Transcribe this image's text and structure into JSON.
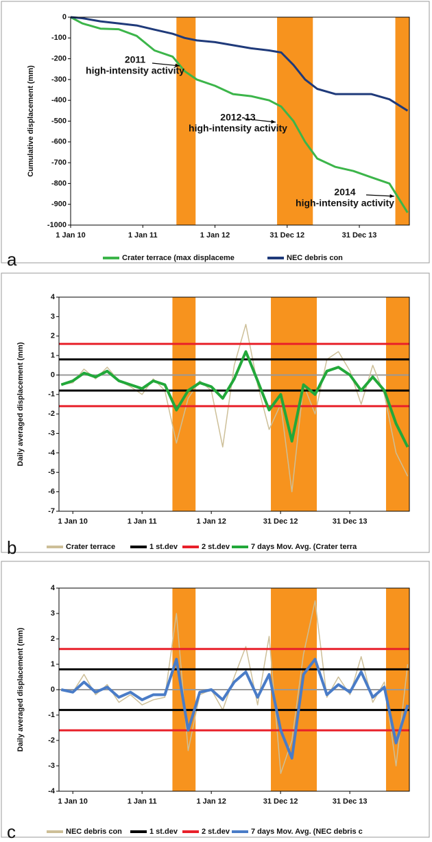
{
  "chart_data": [
    {
      "type": "line",
      "label": "a",
      "y_label": "Cumulative displacement (mm)",
      "x": [
        "2010-01-01",
        "2010-03-01",
        "2010-06-01",
        "2010-09-01",
        "2010-12-01",
        "2011-03-01",
        "2011-06-01",
        "2011-08-01",
        "2011-10-01",
        "2012-01-01",
        "2012-04-01",
        "2012-07-01",
        "2012-10-01",
        "2012-12-01",
        "2013-02-01",
        "2013-04-01",
        "2013-06-01",
        "2013-09-01",
        "2013-12-01",
        "2014-03-01",
        "2014-06-01",
        "2014-09-01"
      ],
      "series": [
        {
          "name": "Crater terrace (max displaceme",
          "color": "#3cb54a",
          "values": [
            0,
            -30,
            -55,
            -58,
            -90,
            -160,
            -190,
            -260,
            -300,
            -330,
            -370,
            -380,
            -400,
            -430,
            -500,
            -600,
            -680,
            -720,
            -740,
            -770,
            -800,
            -940
          ]
        },
        {
          "name": "NEC debris con",
          "color": "#1f3a7a",
          "values": [
            0,
            -5,
            -20,
            -30,
            -40,
            -60,
            -80,
            -100,
            -112,
            -120,
            -135,
            -150,
            -160,
            -170,
            -230,
            -300,
            -345,
            -370,
            -370,
            -370,
            -395,
            -450
          ]
        }
      ],
      "bands": [
        [
          "2011-06-20",
          "2011-09-25"
        ],
        [
          "2012-11-10",
          "2013-05-10"
        ],
        [
          "2014-07-01",
          "2014-09-10"
        ]
      ],
      "band_color": "#f7931e",
      "xlim": [
        "2010-01-01",
        "2014-09-10"
      ],
      "xticks": [
        {
          "value": "2010-01-01",
          "label": "1 Jan 10"
        },
        {
          "value": "2011-01-01",
          "label": "1 Jan 11"
        },
        {
          "value": "2012-01-01",
          "label": "1 Jan 12"
        },
        {
          "value": "2012-12-31",
          "label": "31 Dec 12"
        },
        {
          "value": "2013-12-31",
          "label": "31 Dec 13"
        }
      ],
      "ylim": [
        -1000,
        0
      ],
      "yticks": [
        0,
        -100,
        -200,
        -300,
        -400,
        -500,
        -600,
        -700,
        -800,
        -900,
        -1000
      ],
      "annotations": [
        {
          "lines": [
            "2011",
            "high-intensity activity"
          ]
        },
        {
          "lines": [
            "2012-13",
            "high-intensity activity"
          ]
        },
        {
          "lines": [
            "2014",
            "high-intensity activity"
          ]
        }
      ],
      "zero_line": false
    },
    {
      "type": "line",
      "label": "b",
      "y_label": "Daily averaged displacement (mm)",
      "x": [
        "2009-11-01",
        "2010-01-01",
        "2010-03-01",
        "2010-05-01",
        "2010-07-01",
        "2010-09-01",
        "2010-11-01",
        "2011-01-01",
        "2011-03-01",
        "2011-05-01",
        "2011-07-01",
        "2011-09-01",
        "2011-11-01",
        "2012-01-01",
        "2012-03-01",
        "2012-05-01",
        "2012-07-01",
        "2012-09-01",
        "2012-11-01",
        "2013-01-01",
        "2013-03-01",
        "2013-05-01",
        "2013-07-01",
        "2013-09-01",
        "2013-11-01",
        "2014-01-01",
        "2014-03-01",
        "2014-05-01",
        "2014-07-01",
        "2014-09-01",
        "2014-11-01"
      ],
      "series": [
        {
          "name": "Crater terrace",
          "color": "#cdbf98",
          "values": [
            -0.5,
            -0.4,
            0.3,
            -0.2,
            0.4,
            -0.3,
            -0.6,
            -1.0,
            -0.2,
            -0.8,
            -3.5,
            -1.2,
            -0.3,
            -0.8,
            -3.7,
            0.5,
            2.6,
            -0.5,
            -2.8,
            -1.5,
            -6.0,
            -0.5,
            -2.0,
            0.8,
            1.2,
            0.2,
            -1.5,
            0.5,
            -1.0,
            -4.0,
            -5.2
          ]
        },
        {
          "name": "1 st.dev",
          "color": "#000000",
          "levels": [
            0.8,
            -0.8
          ]
        },
        {
          "name": "2 st.dev",
          "color": "#e8202a",
          "levels": [
            1.6,
            -1.6
          ]
        },
        {
          "name": "7 days Mov. Avg. (Crater terra",
          "color": "#22a83a",
          "values": [
            -0.5,
            -0.3,
            0.1,
            -0.1,
            0.2,
            -0.3,
            -0.5,
            -0.7,
            -0.3,
            -0.5,
            -1.8,
            -0.8,
            -0.4,
            -0.6,
            -1.2,
            -0.2,
            1.2,
            -0.3,
            -1.8,
            -1.0,
            -3.4,
            -0.5,
            -1.0,
            0.2,
            0.4,
            0.0,
            -0.8,
            -0.1,
            -0.8,
            -2.5,
            -3.7
          ]
        }
      ],
      "bands": [
        [
          "2011-06-10",
          "2011-10-10"
        ],
        [
          "2012-11-10",
          "2013-07-10"
        ],
        [
          "2014-07-10",
          "2014-11-10"
        ]
      ],
      "band_color": "#f7931e",
      "xlim": [
        "2009-10-20",
        "2014-11-10"
      ],
      "xticks": [
        {
          "value": "2010-01-01",
          "label": "1 Jan 10"
        },
        {
          "value": "2011-01-01",
          "label": "1 Jan 11"
        },
        {
          "value": "2012-01-01",
          "label": "1 Jan 12"
        },
        {
          "value": "2012-12-31",
          "label": "31 Dec 12"
        },
        {
          "value": "2013-12-31",
          "label": "31 Dec 13"
        }
      ],
      "ylim": [
        -7,
        4
      ],
      "yticks": [
        4,
        3,
        2,
        1,
        0,
        -1,
        -2,
        -3,
        -4,
        -5,
        -6,
        -7
      ],
      "zero_line": true
    },
    {
      "type": "line",
      "label": "c",
      "y_label": "Daily averaged displacement (mm)",
      "x": [
        "2009-11-01",
        "2010-01-01",
        "2010-03-01",
        "2010-05-01",
        "2010-07-01",
        "2010-09-01",
        "2010-11-01",
        "2011-01-01",
        "2011-03-01",
        "2011-05-01",
        "2011-07-01",
        "2011-09-01",
        "2011-11-01",
        "2012-01-01",
        "2012-03-01",
        "2012-05-01",
        "2012-07-01",
        "2012-09-01",
        "2012-11-01",
        "2013-01-01",
        "2013-03-01",
        "2013-05-01",
        "2013-07-01",
        "2013-09-01",
        "2013-11-01",
        "2014-01-01",
        "2014-03-01",
        "2014-05-01",
        "2014-07-01",
        "2014-09-01",
        "2014-11-01"
      ],
      "series": [
        {
          "name": "NEC debris con",
          "color": "#cdbf98",
          "values": [
            0,
            -0.1,
            0.6,
            -0.2,
            0.2,
            -0.5,
            -0.2,
            -0.6,
            -0.4,
            -0.3,
            3.0,
            -2.4,
            -0.2,
            0,
            -0.8,
            0.5,
            1.7,
            -0.6,
            2.1,
            -3.3,
            -2.0,
            1.4,
            3.5,
            -0.3,
            0.5,
            -0.2,
            1.3,
            -0.5,
            0.3,
            -3.0,
            1.0
          ]
        },
        {
          "name": "1 st.dev",
          "color": "#000000",
          "levels": [
            0.8,
            -0.8
          ]
        },
        {
          "name": "2 st.dev",
          "color": "#e8202a",
          "levels": [
            1.6,
            -1.6
          ]
        },
        {
          "name": "7 days Mov. Avg. (NEC debris c",
          "color": "#4a7cc7",
          "values": [
            0,
            -0.1,
            0.3,
            -0.1,
            0.1,
            -0.3,
            -0.1,
            -0.4,
            -0.2,
            -0.2,
            1.2,
            -1.6,
            -0.1,
            0.0,
            -0.4,
            0.3,
            0.7,
            -0.3,
            0.6,
            -1.6,
            -2.7,
            0.6,
            1.2,
            -0.2,
            0.2,
            -0.1,
            0.7,
            -0.3,
            0.1,
            -2.1,
            -0.6
          ]
        }
      ],
      "bands": [
        [
          "2011-06-10",
          "2011-10-10"
        ],
        [
          "2012-11-10",
          "2013-07-10"
        ],
        [
          "2014-07-10",
          "2014-11-10"
        ]
      ],
      "band_color": "#f7931e",
      "xlim": [
        "2009-10-20",
        "2014-11-10"
      ],
      "xticks": [
        {
          "value": "2010-01-01",
          "label": "1 Jan 10"
        },
        {
          "value": "2011-01-01",
          "label": "1 Jan 11"
        },
        {
          "value": "2012-01-01",
          "label": "1 Jan 12"
        },
        {
          "value": "2012-12-31",
          "label": "31 Dec 12"
        },
        {
          "value": "2013-12-31",
          "label": "31 Dec 13"
        }
      ],
      "ylim": [
        -4,
        4
      ],
      "yticks": [
        4,
        3,
        2,
        1,
        0,
        -1,
        -2,
        -3,
        -4
      ],
      "zero_line": true
    }
  ]
}
